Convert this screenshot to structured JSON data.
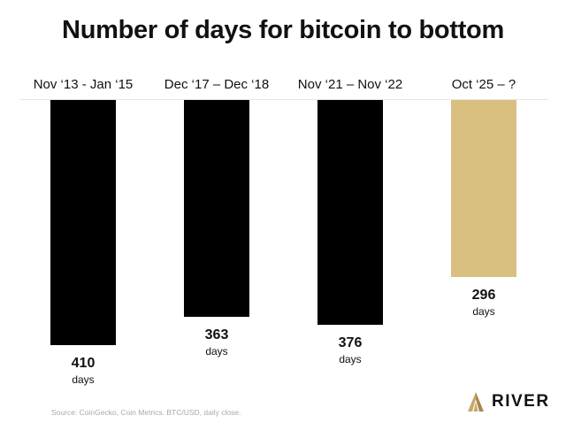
{
  "chart_data": {
    "type": "bar",
    "title": "Number of days for bitcoin to bottom",
    "categories": [
      "Nov ‘13 - Jan ‘15",
      "Dec ‘17 – Dec ‘18",
      "Nov ‘21 – Nov ‘22",
      "Oct ‘25 – ?"
    ],
    "values": [
      410,
      363,
      376,
      296
    ],
    "value_unit": "days",
    "bar_colors": [
      "#000000",
      "#000000",
      "#000000",
      "#d9bf80"
    ],
    "orientation": "bars hang downward from top baseline",
    "xlabel": "",
    "ylabel": "",
    "grid": false,
    "legend": "none"
  },
  "footer": {
    "source": "Source: CoinGecko, Coin Metrics. BTC/USD, daily close.",
    "brand": "RIVER",
    "brand_icon": "river-mountain-icon",
    "brand_color": "#c9a86a"
  }
}
